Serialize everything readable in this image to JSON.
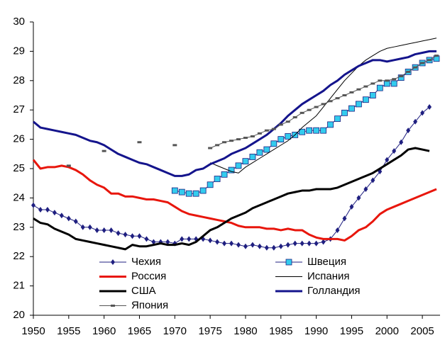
{
  "chart_data": {
    "type": "line",
    "xlim": [
      1950,
      2007.5
    ],
    "xticks": [
      1950,
      1955,
      1960,
      1965,
      1970,
      1975,
      1980,
      1985,
      1990,
      1995,
      2000,
      2005
    ],
    "ylim": [
      20,
      30
    ],
    "yticks": [
      20,
      21,
      22,
      23,
      24,
      25,
      26,
      27,
      28,
      29,
      30
    ],
    "grid": false,
    "legend": "lower-center",
    "series": [
      {
        "name": "Чехия",
        "color": "#1f1f80",
        "width": 1,
        "marker": "diamond",
        "x": [
          1950,
          1951,
          1952,
          1953,
          1954,
          1955,
          1956,
          1957,
          1958,
          1959,
          1960,
          1961,
          1962,
          1963,
          1964,
          1965,
          1966,
          1967,
          1968,
          1969,
          1970,
          1971,
          1972,
          1973,
          1974,
          1975,
          1976,
          1977,
          1978,
          1979,
          1980,
          1981,
          1982,
          1983,
          1984,
          1985,
          1986,
          1987,
          1988,
          1989,
          1990,
          1991,
          1992,
          1993,
          1994,
          1995,
          1996,
          1997,
          1998,
          1999,
          2000,
          2001,
          2002,
          2003,
          2004,
          2005,
          2006
        ],
        "values": [
          23.75,
          23.6,
          23.6,
          23.5,
          23.4,
          23.3,
          23.2,
          23.0,
          23.0,
          22.9,
          22.9,
          22.9,
          22.8,
          22.75,
          22.7,
          22.7,
          22.6,
          22.5,
          22.5,
          22.5,
          22.45,
          22.6,
          22.6,
          22.6,
          22.6,
          22.55,
          22.5,
          22.45,
          22.45,
          22.4,
          22.35,
          22.4,
          22.35,
          22.3,
          22.3,
          22.35,
          22.4,
          22.45,
          22.45,
          22.45,
          22.45,
          22.5,
          22.6,
          22.9,
          23.3,
          23.7,
          24.0,
          24.3,
          24.6,
          24.9,
          25.3,
          25.6,
          25.9,
          26.3,
          26.6,
          26.9,
          27.1
        ]
      },
      {
        "name": "Швеция",
        "color": "#1f1f80",
        "fill": "#33ccee",
        "width": 1,
        "marker": "square",
        "x": [
          1970,
          1971,
          1972,
          1973,
          1974,
          1975,
          1976,
          1977,
          1978,
          1979,
          1980,
          1981,
          1982,
          1983,
          1984,
          1985,
          1986,
          1987,
          1988,
          1989,
          1990,
          1991,
          1992,
          1993,
          1994,
          1995,
          1996,
          1997,
          1998,
          1999,
          2000,
          2001,
          2002,
          2003,
          2004,
          2005,
          2006,
          2007
        ],
        "values": [
          24.25,
          24.2,
          24.15,
          24.15,
          24.25,
          24.45,
          24.65,
          24.8,
          24.95,
          25.1,
          25.25,
          25.4,
          25.55,
          25.65,
          25.85,
          26.0,
          26.1,
          26.15,
          26.25,
          26.3,
          26.3,
          26.3,
          26.5,
          26.7,
          26.9,
          27.05,
          27.2,
          27.35,
          27.5,
          27.75,
          27.9,
          27.9,
          28.1,
          28.3,
          28.45,
          28.6,
          28.7,
          28.75
        ]
      },
      {
        "name": "Россия",
        "color": "#e8160c",
        "width": 3,
        "marker": "none",
        "x": [
          1950,
          1951,
          1952,
          1953,
          1954,
          1955,
          1956,
          1957,
          1958,
          1959,
          1960,
          1961,
          1962,
          1963,
          1964,
          1965,
          1966,
          1967,
          1968,
          1969,
          1970,
          1971,
          1972,
          1973,
          1974,
          1975,
          1976,
          1977,
          1978,
          1979,
          1980,
          1981,
          1982,
          1983,
          1984,
          1985,
          1986,
          1987,
          1988,
          1989,
          1990,
          1991,
          1992,
          1993,
          1994,
          1995,
          1996,
          1997,
          1998,
          1999,
          2000,
          2001,
          2002,
          2003,
          2004,
          2005,
          2006,
          2007
        ],
        "values": [
          25.3,
          25.0,
          25.05,
          25.05,
          25.1,
          25.05,
          24.95,
          24.8,
          24.6,
          24.45,
          24.35,
          24.15,
          24.15,
          24.05,
          24.05,
          24.0,
          23.95,
          23.95,
          23.9,
          23.85,
          23.7,
          23.55,
          23.45,
          23.4,
          23.35,
          23.3,
          23.25,
          23.2,
          23.15,
          23.05,
          23.0,
          23.0,
          23.0,
          22.95,
          22.95,
          22.9,
          22.95,
          22.9,
          22.9,
          22.75,
          22.65,
          22.6,
          22.6,
          22.6,
          22.55,
          22.7,
          22.9,
          23.0,
          23.2,
          23.45,
          23.6,
          23.7,
          23.8,
          23.9,
          24.0,
          24.1,
          24.2,
          24.3
        ]
      },
      {
        "name": "Испания",
        "color": "#000000",
        "width": 1,
        "marker": "none",
        "x": [
          1975,
          1976,
          1977,
          1978,
          1979,
          1980,
          1981,
          1982,
          1983,
          1984,
          1985,
          1986,
          1987,
          1988,
          1989,
          1990,
          1991,
          1992,
          1993,
          1994,
          1995,
          1996,
          1997,
          1998,
          1999,
          2000,
          2001,
          2002,
          2003,
          2004,
          2005,
          2006,
          2007
        ],
        "values": [
          25.2,
          25.1,
          25.0,
          24.9,
          24.85,
          25.05,
          25.2,
          25.35,
          25.5,
          25.65,
          25.8,
          25.95,
          26.15,
          26.4,
          26.6,
          26.8,
          27.1,
          27.4,
          27.7,
          28.0,
          28.25,
          28.5,
          28.7,
          28.85,
          29.0,
          29.1,
          29.15,
          29.2,
          29.25,
          29.3,
          29.35,
          29.4,
          29.45
        ]
      },
      {
        "name": "США",
        "color": "#000000",
        "width": 3,
        "marker": "none",
        "x": [
          1950,
          1951,
          1952,
          1953,
          1954,
          1955,
          1956,
          1957,
          1958,
          1959,
          1960,
          1961,
          1962,
          1963,
          1964,
          1965,
          1966,
          1967,
          1968,
          1969,
          1970,
          1971,
          1972,
          1973,
          1974,
          1975,
          1976,
          1977,
          1978,
          1979,
          1980,
          1981,
          1982,
          1983,
          1984,
          1985,
          1986,
          1987,
          1988,
          1989,
          1990,
          1991,
          1992,
          1993,
          1994,
          1995,
          1996,
          1997,
          1998,
          1999,
          2000,
          2001,
          2002,
          2003,
          2004,
          2005,
          2006
        ],
        "values": [
          23.3,
          23.15,
          23.1,
          22.95,
          22.85,
          22.75,
          22.6,
          22.55,
          22.5,
          22.45,
          22.4,
          22.35,
          22.3,
          22.25,
          22.4,
          22.35,
          22.35,
          22.4,
          22.45,
          22.4,
          22.4,
          22.45,
          22.4,
          22.5,
          22.7,
          22.9,
          23.0,
          23.15,
          23.3,
          23.4,
          23.5,
          23.65,
          23.75,
          23.85,
          23.95,
          24.05,
          24.15,
          24.2,
          24.25,
          24.25,
          24.3,
          24.3,
          24.3,
          24.35,
          24.45,
          24.55,
          24.65,
          24.75,
          24.85,
          25.0,
          25.15,
          25.3,
          25.45,
          25.65,
          25.7,
          25.65,
          25.6
        ]
      },
      {
        "name": "Голландия",
        "color": "#14148c",
        "width": 3,
        "marker": "none",
        "x": [
          1950,
          1951,
          1952,
          1953,
          1954,
          1955,
          1956,
          1957,
          1958,
          1959,
          1960,
          1961,
          1962,
          1963,
          1964,
          1965,
          1966,
          1967,
          1968,
          1969,
          1970,
          1971,
          1972,
          1973,
          1974,
          1975,
          1976,
          1977,
          1978,
          1979,
          1980,
          1981,
          1982,
          1983,
          1984,
          1985,
          1986,
          1987,
          1988,
          1989,
          1990,
          1991,
          1992,
          1993,
          1994,
          1995,
          1996,
          1997,
          1998,
          1999,
          2000,
          2001,
          2002,
          2003,
          2004,
          2005,
          2006,
          2007
        ],
        "values": [
          26.6,
          26.4,
          26.35,
          26.3,
          26.25,
          26.2,
          26.15,
          26.05,
          25.95,
          25.9,
          25.8,
          25.65,
          25.5,
          25.4,
          25.3,
          25.2,
          25.15,
          25.05,
          24.95,
          24.85,
          24.75,
          24.75,
          24.8,
          24.95,
          25.0,
          25.15,
          25.25,
          25.35,
          25.5,
          25.6,
          25.7,
          25.85,
          26.0,
          26.15,
          26.35,
          26.55,
          26.8,
          27.0,
          27.2,
          27.35,
          27.5,
          27.65,
          27.85,
          28.0,
          28.2,
          28.35,
          28.5,
          28.6,
          28.7,
          28.7,
          28.65,
          28.7,
          28.75,
          28.8,
          28.9,
          28.95,
          29.0,
          29.0
        ]
      },
      {
        "name": "Япония",
        "color": "#555555",
        "width": 1,
        "marker": "dash",
        "x": [
          1955,
          1958,
          1960,
          1963,
          1965,
          1968,
          1970,
          1973,
          1975,
          1976,
          1977,
          1978,
          1979,
          1980,
          1981,
          1982,
          1983,
          1984,
          1985,
          1986,
          1987,
          1988,
          1989,
          1990,
          1991,
          1992,
          1993,
          1994,
          1995,
          1996,
          1997,
          1998,
          1999,
          2000,
          2001,
          2002,
          2003,
          2004,
          2005,
          2006,
          2007
        ],
        "values": [
          25.1,
          null,
          25.6,
          null,
          25.9,
          null,
          25.8,
          null,
          25.7,
          25.8,
          25.9,
          25.95,
          26.0,
          26.05,
          26.1,
          26.2,
          26.3,
          26.35,
          26.5,
          26.6,
          26.75,
          26.9,
          27.0,
          27.1,
          27.2,
          27.3,
          27.4,
          27.5,
          27.6,
          27.7,
          27.8,
          27.9,
          28.0,
          28.0,
          28.05,
          28.15,
          28.3,
          28.45,
          28.6,
          28.7,
          28.85
        ]
      }
    ]
  }
}
